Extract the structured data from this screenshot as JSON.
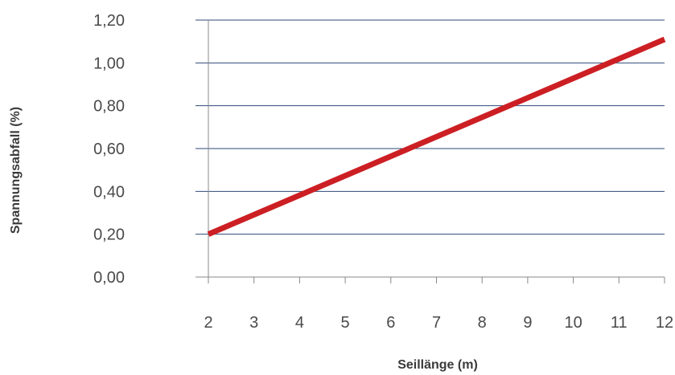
{
  "chart_data": {
    "type": "line",
    "title": "",
    "xlabel": "Seillänge (m)",
    "ylabel": "Spannungsabfall (%)",
    "x_ticks": [
      "2",
      "3",
      "4",
      "5",
      "6",
      "7",
      "8",
      "9",
      "10",
      "11",
      "12"
    ],
    "y_ticks": [
      "0,00",
      "0,20",
      "0,40",
      "0,60",
      "0,80",
      "1,00",
      "1,20"
    ],
    "xlim": [
      2,
      12
    ],
    "ylim": [
      0,
      1.2
    ],
    "grid": "horizontal",
    "series": [
      {
        "x": [
          2,
          12
        ],
        "y": [
          0.2,
          1.11
        ],
        "color": "#cc1f24"
      }
    ],
    "colors": {
      "gridline": "#2e4a78",
      "axis": "#888888"
    }
  }
}
